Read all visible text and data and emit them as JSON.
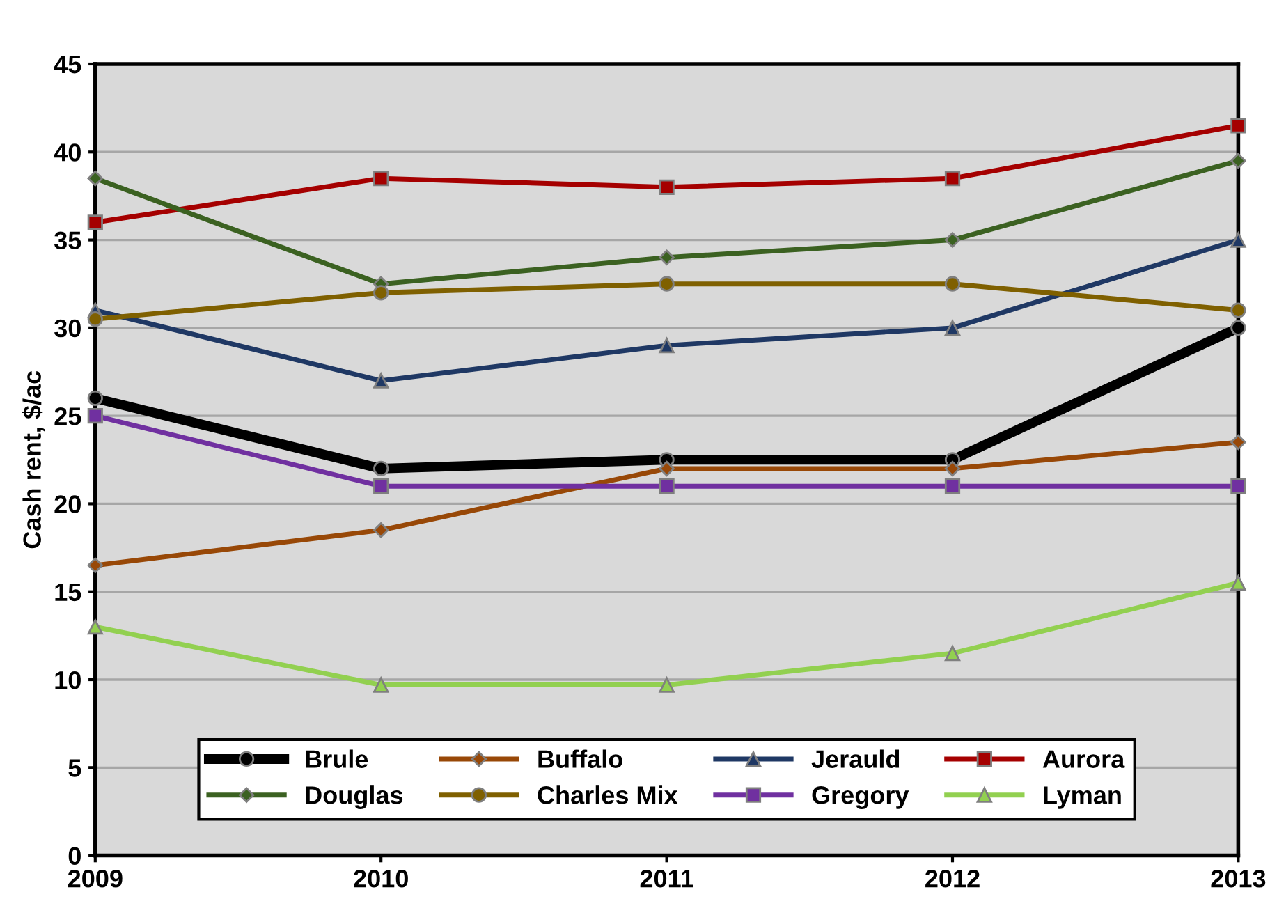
{
  "chart_data": {
    "type": "line",
    "ylabel": "Cash rent, $/ac",
    "x": [
      2009,
      2010,
      2011,
      2012,
      2013
    ],
    "xlim": [
      2009,
      2013
    ],
    "xticks": [
      2009,
      2010,
      2011,
      2012,
      2013
    ],
    "ylim": [
      0,
      45
    ],
    "yticks": [
      0,
      5,
      10,
      15,
      20,
      25,
      30,
      35,
      40,
      45
    ],
    "grid": "y",
    "legend": "bottom",
    "series": [
      {
        "name": "Brule",
        "color": "#000000",
        "marker": "circle",
        "values": [
          26,
          22,
          22.5,
          22.5,
          30
        ]
      },
      {
        "name": "Buffalo",
        "color": "#984807",
        "marker": "diamond",
        "values": [
          16.5,
          18.5,
          22,
          22,
          23.5
        ]
      },
      {
        "name": "Jerauld",
        "color": "#1f3864",
        "marker": "triangle",
        "values": [
          31,
          27,
          29,
          30,
          35
        ]
      },
      {
        "name": "Aurora",
        "color": "#a50000",
        "marker": "square",
        "values": [
          36,
          38.5,
          38,
          38.5,
          41.5
        ]
      },
      {
        "name": "Douglas",
        "color": "#3b6121",
        "marker": "diamond",
        "values": [
          38.5,
          32.5,
          34,
          35,
          39.5
        ]
      },
      {
        "name": "Charles Mix",
        "color": "#7f6000",
        "marker": "circle",
        "values": [
          30.5,
          32,
          32.5,
          32.5,
          31
        ]
      },
      {
        "name": "Gregory",
        "color": "#7030a0",
        "marker": "square",
        "values": [
          25,
          21,
          21,
          21,
          21
        ]
      },
      {
        "name": "Lyman",
        "color": "#92d050",
        "marker": "triangle",
        "values": [
          13,
          9.7,
          9.7,
          11.5,
          15.5
        ]
      }
    ]
  }
}
